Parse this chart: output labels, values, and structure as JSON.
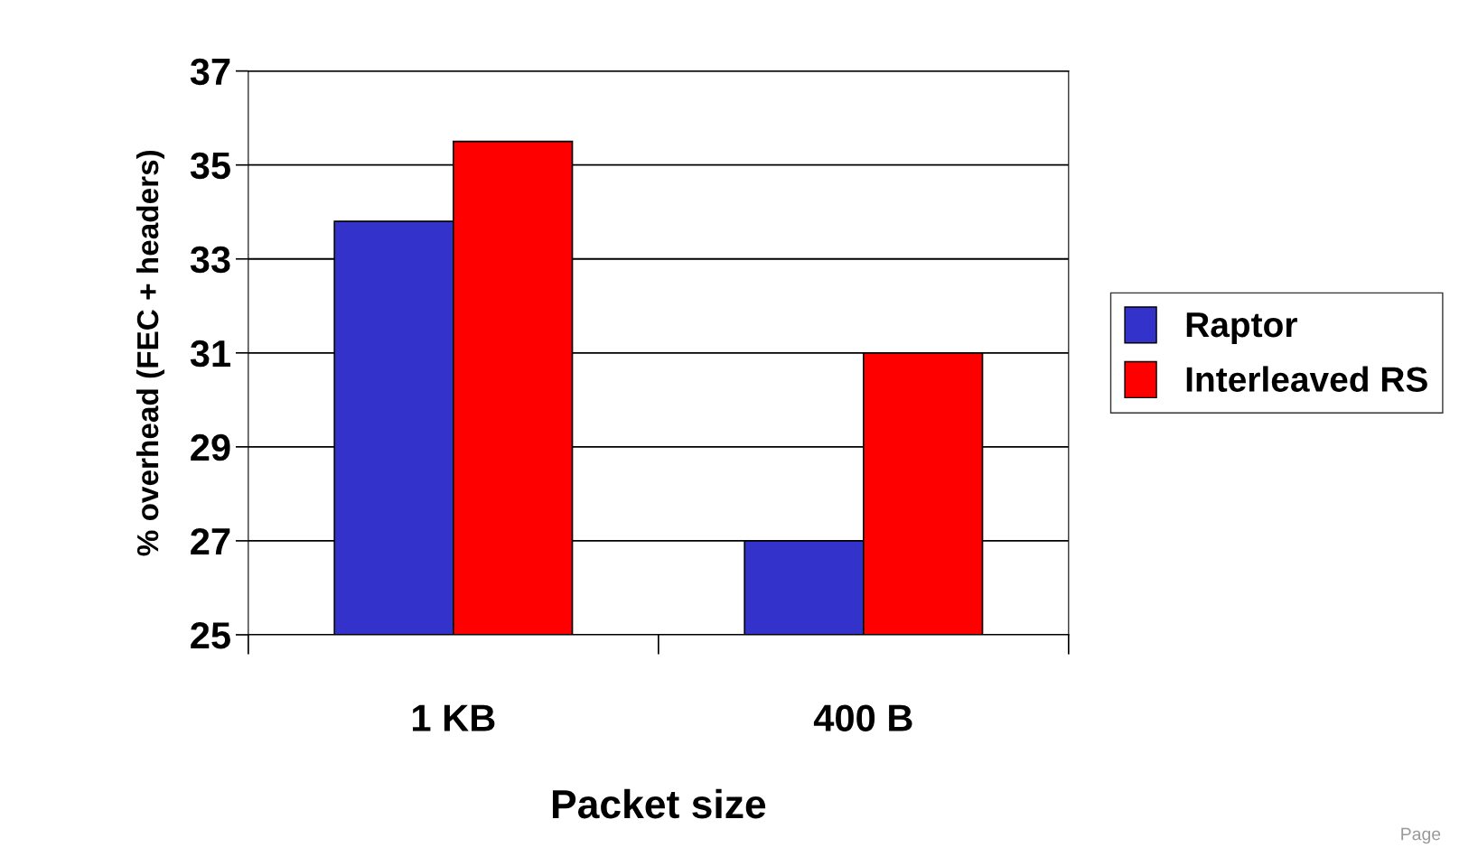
{
  "chart_data": {
    "type": "bar",
    "xlabel": "Packet size",
    "ylabel": "% overhead (FEC + headers)",
    "categories": [
      "1 KB",
      "400 B"
    ],
    "series": [
      {
        "name": "Raptor",
        "color": "#3333cc",
        "values": [
          33.8,
          27.0
        ]
      },
      {
        "name": "Interleaved RS",
        "color": "#ff0000",
        "values": [
          35.5,
          31.0
        ]
      }
    ],
    "ylim": [
      25,
      37
    ],
    "yticks": [
      25,
      27,
      29,
      31,
      33,
      35,
      37
    ],
    "grid": "y",
    "legend": "right",
    "annotations": [
      "Page"
    ]
  }
}
